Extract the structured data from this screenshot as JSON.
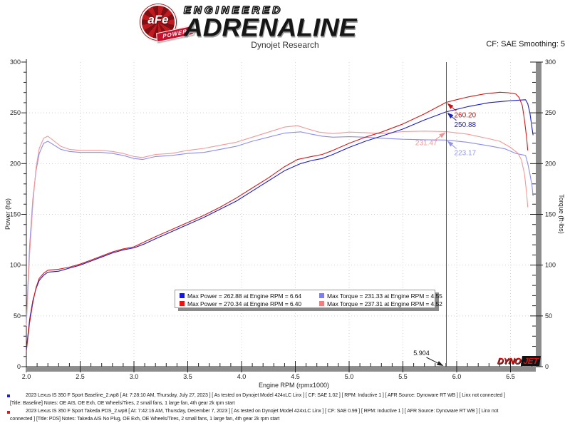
{
  "header": {
    "engineered": "ENGINEERED",
    "adrenaline": "ADRENALINE",
    "subtitle": "Dynojet Research",
    "cf_info": "CF: SAE Smoothing: 5"
  },
  "logo": {
    "afe": "aFe",
    "power": "POWER"
  },
  "watermark": {
    "dyno": "DYNO",
    "jet": "JET"
  },
  "legend": {
    "items": [
      {
        "color": "#1414e6",
        "text": "Max Power = 262.88 at Engine RPM = 6.64"
      },
      {
        "color": "#7d7df2",
        "text": "Max Torque = 231.33 at Engine RPM = 4.55"
      },
      {
        "color": "#e61414",
        "text": "Max Power = 270.34 at Engine RPM = 6.40"
      },
      {
        "color": "#f27d7d",
        "text": "Max Torque = 237.31 at Engine RPM = 4.52"
      }
    ]
  },
  "chart_data": {
    "type": "line",
    "title": "Dynojet Research",
    "xlabel": "Engine RPM (rpmx1000)",
    "ylabel_left": "Power (hp)",
    "ylabel_right": "Torque (ft-lbs)",
    "xlim": [
      2.0,
      6.76
    ],
    "ylim": [
      0,
      300
    ],
    "x_tick_labels": [
      "2.0",
      "2.5",
      "3.0",
      "3.5",
      "4.0",
      "4.5",
      "5.0",
      "5.5",
      "6.0",
      "6.5"
    ],
    "y_tick_labels": [
      "0",
      "50",
      "100",
      "150",
      "200",
      "250",
      "300"
    ],
    "grid": "dotted",
    "cursor": {
      "rpm": 5.904,
      "label": "5.904"
    },
    "annotations": [
      {
        "label": "260.20",
        "value": 260.2,
        "rpm": 5.904,
        "color": "#cc1111",
        "side": "right"
      },
      {
        "label": "250.88",
        "value": 250.88,
        "rpm": 5.904,
        "color": "#2222bb",
        "side": "right"
      },
      {
        "label": "231.47",
        "value": 231.47,
        "rpm": 5.904,
        "color": "#ee9494",
        "side": "left"
      },
      {
        "label": "223.17",
        "value": 223.17,
        "rpm": 5.904,
        "color": "#9494ee",
        "side": "right"
      }
    ],
    "series": [
      {
        "name": "Baseline Torque (ft-lbs)",
        "color": "#8c8cf0",
        "points": [
          [
            2.0,
            45
          ],
          [
            2.03,
            118
          ],
          [
            2.06,
            165
          ],
          [
            2.09,
            193
          ],
          [
            2.12,
            210
          ],
          [
            2.16,
            220
          ],
          [
            2.2,
            222
          ],
          [
            2.26,
            218
          ],
          [
            2.32,
            214
          ],
          [
            2.4,
            212
          ],
          [
            2.5,
            211
          ],
          [
            2.6,
            211
          ],
          [
            2.7,
            211
          ],
          [
            2.8,
            210
          ],
          [
            2.9,
            208
          ],
          [
            3.0,
            205
          ],
          [
            3.08,
            204
          ],
          [
            3.2,
            207
          ],
          [
            3.35,
            208
          ],
          [
            3.5,
            210
          ],
          [
            3.65,
            211
          ],
          [
            3.8,
            214
          ],
          [
            3.95,
            217
          ],
          [
            4.1,
            222
          ],
          [
            4.25,
            226
          ],
          [
            4.4,
            230
          ],
          [
            4.55,
            231.3
          ],
          [
            4.65,
            229
          ],
          [
            4.75,
            227
          ],
          [
            4.85,
            226
          ],
          [
            5.0,
            226.5
          ],
          [
            5.15,
            226
          ],
          [
            5.3,
            225
          ],
          [
            5.5,
            224
          ],
          [
            5.7,
            223.5
          ],
          [
            5.9,
            223.2
          ],
          [
            6.1,
            221
          ],
          [
            6.3,
            217.5
          ],
          [
            6.45,
            214.5
          ],
          [
            6.55,
            210
          ],
          [
            6.64,
            208
          ],
          [
            6.66,
            200
          ],
          [
            6.68,
            190
          ],
          [
            6.7,
            178
          ],
          [
            6.71,
            168
          ]
        ]
      },
      {
        "name": "PDS Torque (ft-lbs)",
        "color": "#f49898",
        "points": [
          [
            2.0,
            40
          ],
          [
            2.03,
            110
          ],
          [
            2.06,
            160
          ],
          [
            2.09,
            196
          ],
          [
            2.12,
            215
          ],
          [
            2.16,
            225
          ],
          [
            2.2,
            227
          ],
          [
            2.26,
            222
          ],
          [
            2.32,
            217
          ],
          [
            2.4,
            214
          ],
          [
            2.5,
            213
          ],
          [
            2.6,
            213
          ],
          [
            2.7,
            213
          ],
          [
            2.8,
            212
          ],
          [
            2.9,
            210
          ],
          [
            3.0,
            207
          ],
          [
            3.08,
            206
          ],
          [
            3.2,
            209
          ],
          [
            3.35,
            210
          ],
          [
            3.5,
            213
          ],
          [
            3.65,
            215
          ],
          [
            3.8,
            218
          ],
          [
            3.95,
            221
          ],
          [
            4.1,
            226
          ],
          [
            4.25,
            231
          ],
          [
            4.4,
            236
          ],
          [
            4.52,
            237.3
          ],
          [
            4.62,
            234
          ],
          [
            4.72,
            231
          ],
          [
            4.85,
            229.5
          ],
          [
            5.0,
            231
          ],
          [
            5.15,
            230.5
          ],
          [
            5.3,
            229.5
          ],
          [
            5.5,
            231.5
          ],
          [
            5.7,
            232
          ],
          [
            5.9,
            231.5
          ],
          [
            6.1,
            229
          ],
          [
            6.3,
            224.5
          ],
          [
            6.4,
            222
          ],
          [
            6.5,
            216
          ],
          [
            6.57,
            210
          ],
          [
            6.6,
            204
          ],
          [
            6.63,
            190
          ],
          [
            6.65,
            170
          ],
          [
            6.66,
            157
          ]
        ]
      },
      {
        "name": "Baseline Power (hp)",
        "color": "#1c1ccd",
        "points": [
          [
            2.0,
            17
          ],
          [
            2.03,
            46
          ],
          [
            2.06,
            65
          ],
          [
            2.09,
            77
          ],
          [
            2.12,
            85
          ],
          [
            2.16,
            90
          ],
          [
            2.2,
            93
          ],
          [
            2.3,
            94
          ],
          [
            2.4,
            97
          ],
          [
            2.5,
            100
          ],
          [
            2.6,
            104
          ],
          [
            2.7,
            108
          ],
          [
            2.8,
            112
          ],
          [
            2.9,
            115
          ],
          [
            3.0,
            117
          ],
          [
            3.1,
            121
          ],
          [
            3.2,
            126
          ],
          [
            3.35,
            133
          ],
          [
            3.5,
            140
          ],
          [
            3.65,
            147
          ],
          [
            3.8,
            155
          ],
          [
            3.95,
            163
          ],
          [
            4.1,
            173
          ],
          [
            4.25,
            183
          ],
          [
            4.4,
            193
          ],
          [
            4.55,
            200
          ],
          [
            4.65,
            203
          ],
          [
            4.75,
            205
          ],
          [
            4.85,
            209
          ],
          [
            5.0,
            216
          ],
          [
            5.15,
            222
          ],
          [
            5.3,
            227
          ],
          [
            5.5,
            234
          ],
          [
            5.7,
            243
          ],
          [
            5.9,
            250.9
          ],
          [
            6.1,
            256
          ],
          [
            6.3,
            260
          ],
          [
            6.45,
            261.5
          ],
          [
            6.55,
            262.3
          ],
          [
            6.64,
            262.9
          ],
          [
            6.66,
            259
          ],
          [
            6.68,
            250
          ],
          [
            6.7,
            235
          ],
          [
            6.71,
            228
          ]
        ]
      },
      {
        "name": "PDS Power (hp)",
        "color": "#d41a1a",
        "points": [
          [
            2.0,
            15
          ],
          [
            2.03,
            43
          ],
          [
            2.06,
            63
          ],
          [
            2.09,
            78
          ],
          [
            2.12,
            87
          ],
          [
            2.16,
            92
          ],
          [
            2.2,
            95
          ],
          [
            2.3,
            96
          ],
          [
            2.4,
            98
          ],
          [
            2.5,
            101
          ],
          [
            2.6,
            105
          ],
          [
            2.7,
            109
          ],
          [
            2.8,
            113
          ],
          [
            2.9,
            116
          ],
          [
            3.0,
            118
          ],
          [
            3.1,
            123
          ],
          [
            3.2,
            128
          ],
          [
            3.35,
            135
          ],
          [
            3.5,
            142
          ],
          [
            3.65,
            149
          ],
          [
            3.8,
            157
          ],
          [
            3.95,
            166
          ],
          [
            4.1,
            176
          ],
          [
            4.25,
            186
          ],
          [
            4.4,
            197
          ],
          [
            4.52,
            204
          ],
          [
            4.65,
            207
          ],
          [
            4.75,
            209
          ],
          [
            4.85,
            213
          ],
          [
            5.0,
            220
          ],
          [
            5.15,
            226
          ],
          [
            5.3,
            231
          ],
          [
            5.5,
            239
          ],
          [
            5.7,
            249
          ],
          [
            5.9,
            260.2
          ],
          [
            6.0,
            263
          ],
          [
            6.1,
            265.5
          ],
          [
            6.25,
            268.5
          ],
          [
            6.4,
            270.3
          ],
          [
            6.48,
            269.8
          ],
          [
            6.55,
            268.5
          ],
          [
            6.58,
            265
          ],
          [
            6.61,
            257
          ],
          [
            6.63,
            243
          ],
          [
            6.65,
            225
          ],
          [
            6.66,
            213
          ]
        ]
      }
    ]
  },
  "footer": {
    "lines": [
      "2023 Lexus IS 350 F Sport Baseline_2.wp8 [ At: 7:28:10 AM, Thursday, July 27, 2023 ] [ As tested on Dynojet Model 424xLC Linx ] [ CF: SAE 1.02 ] [ RPM: Inductive 1 ] [ AFR Source: Dynoware RT WB ] [ Linx not connected ]",
      "[Title: Baseline]  Notes: OE AIS, OE Exh, OE Wheels/Tires, 2 small fans, 1 large fan, 4th gear 2k rpm start",
      "2023 Lexus IS 350 F Sport Takeda PDS_2.wp8 [ At: 7:42:16 AM, Thursday, December 7, 2023 ] [ As tested on Dynojet Model 424xLC Linx ] [ CF: SAE 0.99 ] [ RPM: Inductive 1 ] [ AFR Source: Dynoware RT WB ] [ Linx not",
      "connected ] [Title: PDS]  Notes: Takeda AIS No Plug, OE Exh, OE Wheels/Tires, 2 small fans, 1 large fan, 4th gear 2k rpm start"
    ]
  }
}
